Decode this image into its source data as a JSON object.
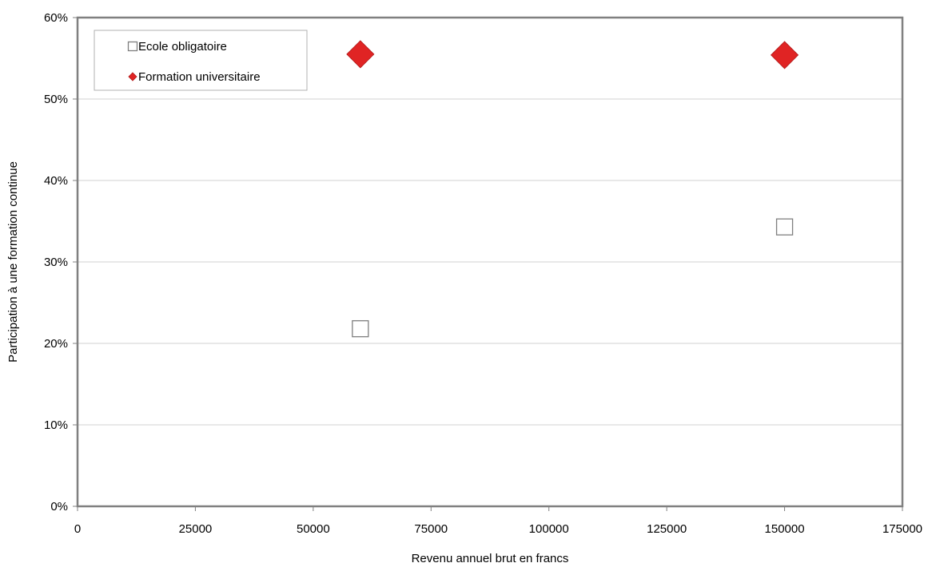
{
  "chart_data": {
    "type": "scatter",
    "title": "",
    "xlabel": "Revenu annuel brut en francs",
    "ylabel": "Participation à une formation continue",
    "xlim": [
      0,
      175000
    ],
    "ylim": [
      0,
      0.6
    ],
    "x_ticks": [
      {
        "value": 0,
        "label": "0"
      },
      {
        "value": 25000,
        "label": "25000"
      },
      {
        "value": 50000,
        "label": "50000"
      },
      {
        "value": 75000,
        "label": "75000"
      },
      {
        "value": 100000,
        "label": "100000"
      },
      {
        "value": 125000,
        "label": "125000"
      },
      {
        "value": 150000,
        "label": "150000"
      },
      {
        "value": 175000,
        "label": "175000"
      }
    ],
    "y_ticks": [
      {
        "value": 0,
        "label": "0%"
      },
      {
        "value": 0.1,
        "label": "10%"
      },
      {
        "value": 0.2,
        "label": "20%"
      },
      {
        "value": 0.3,
        "label": "30%"
      },
      {
        "value": 0.4,
        "label": "40%"
      },
      {
        "value": 0.5,
        "label": "50%"
      },
      {
        "value": 0.6,
        "label": "60%"
      }
    ],
    "grid": "horizontal",
    "legend_position": "top-left",
    "series": [
      {
        "name": "Ecole obligatoire",
        "marker": "square-open",
        "color": "#7f7f7f",
        "points": [
          {
            "x": 60000,
            "y": 0.218
          },
          {
            "x": 150000,
            "y": 0.343
          }
        ]
      },
      {
        "name": "Formation universitaire",
        "marker": "diamond",
        "color": "#e02424",
        "points": [
          {
            "x": 60000,
            "y": 0.555
          },
          {
            "x": 150000,
            "y": 0.554
          }
        ]
      }
    ]
  }
}
